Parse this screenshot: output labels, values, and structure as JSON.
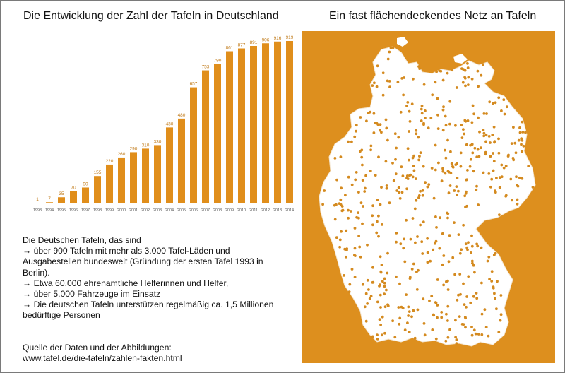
{
  "left_title": "Die Entwicklung der Zahl der Tafeln in Deutschland",
  "right_title": "Ein fast flächendeckendes Netz an Tafeln",
  "chart_data": {
    "type": "bar",
    "title": "Die Entwicklung der Zahl der Tafeln in Deutschland",
    "categories": [
      "1993",
      "1994",
      "1995",
      "1996",
      "1997",
      "1998",
      "1999",
      "2000",
      "2001",
      "2002",
      "2003",
      "2004",
      "2005",
      "2006",
      "2007",
      "2008",
      "2009",
      "2010",
      "2011",
      "2012",
      "2013",
      "2014"
    ],
    "values": [
      1,
      7,
      35,
      70,
      90,
      155,
      220,
      260,
      290,
      310,
      330,
      430,
      480,
      657,
      753,
      790,
      861,
      877,
      891,
      906,
      916,
      919
    ],
    "data_labels": [
      "1",
      "7",
      "35",
      "70",
      "90",
      "155",
      "220",
      "260",
      "290",
      "310",
      "330",
      "430",
      "480",
      "657",
      "753",
      "790",
      "861",
      "877",
      "891",
      "906",
      "916",
      "919"
    ],
    "ylim": [
      0,
      919
    ],
    "bar_color": "#e08e1b",
    "xlabel": "",
    "ylabel": ""
  },
  "info": {
    "lines": [
      "Die Deutschen Tafeln, das sind",
      "→ über 900 Tafeln mit mehr als 3.000 Tafel-Läden und",
      "Ausgabestellen bundesweit (Gründung der ersten Tafel 1993 in",
      "Berlin).",
      "→ Etwa 60.000 ehrenamtliche Helferinnen und Helfer,",
      "→ über 5.000 Fahrzeuge im Einsatz",
      "→ Die deutschen Tafeln unterstützen regelmäßig ca. 1,5 Millionen",
      "bedürftige Personen"
    ]
  },
  "source": {
    "label": "Quelle der Daten und der Abbildungen:",
    "url": "www.tafel.de/die-tafeln/zahlen-fakten.html"
  },
  "map": {
    "background_color": "#dd8f1e",
    "land_color": "#ffffff",
    "dot_color": "#d48a1f"
  }
}
